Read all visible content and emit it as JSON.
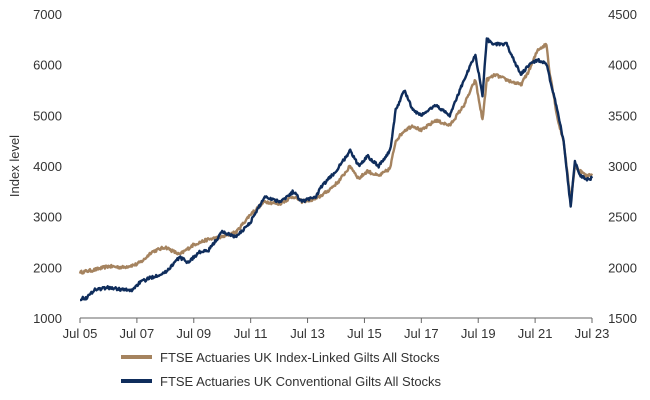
{
  "chart_data": {
    "type": "line",
    "title": "",
    "xlabel": "",
    "ylabel": "Index level",
    "y2label": "",
    "x_ticks": [
      "Jul 05",
      "Jul 07",
      "Jul 09",
      "Jul 11",
      "Jul 13",
      "Jul 15",
      "Jul 17",
      "Jul 19",
      "Jul 21",
      "Jul 23"
    ],
    "xlim": [
      2005.5,
      2023.5
    ],
    "ylim": [
      1000,
      7000
    ],
    "y_ticks": [
      "1000",
      "2000",
      "3000",
      "4000",
      "5000",
      "6000",
      "7000"
    ],
    "y2lim": [
      1500,
      4500
    ],
    "y2_ticks": [
      "1500",
      "2000",
      "2500",
      "3000",
      "3500",
      "4000",
      "4500"
    ],
    "grid": false,
    "legend": "bottom",
    "series": [
      {
        "name": "FTSE Actuaries UK Index-Linked Gilts All Stocks",
        "axis": "left",
        "color": "#a5835f",
        "points": [
          [
            2005.5,
            1900
          ],
          [
            2006.0,
            1950
          ],
          [
            2006.5,
            2020
          ],
          [
            2007.0,
            2000
          ],
          [
            2007.5,
            2060
          ],
          [
            2007.75,
            2150
          ],
          [
            2008.0,
            2300
          ],
          [
            2008.5,
            2400
          ],
          [
            2009.0,
            2250
          ],
          [
            2009.5,
            2450
          ],
          [
            2010.0,
            2550
          ],
          [
            2010.5,
            2600
          ],
          [
            2011.0,
            2700
          ],
          [
            2011.5,
            3050
          ],
          [
            2011.8,
            3200
          ],
          [
            2012.0,
            3300
          ],
          [
            2012.5,
            3250
          ],
          [
            2013.0,
            3400
          ],
          [
            2013.3,
            3300
          ],
          [
            2013.8,
            3350
          ],
          [
            2014.2,
            3500
          ],
          [
            2014.6,
            3700
          ],
          [
            2015.0,
            4000
          ],
          [
            2015.3,
            3750
          ],
          [
            2015.6,
            3900
          ],
          [
            2016.0,
            3800
          ],
          [
            2016.4,
            3950
          ],
          [
            2016.6,
            4500
          ],
          [
            2016.9,
            4700
          ],
          [
            2017.2,
            4800
          ],
          [
            2017.5,
            4700
          ],
          [
            2018.0,
            4900
          ],
          [
            2018.5,
            4800
          ],
          [
            2019.0,
            5200
          ],
          [
            2019.4,
            5700
          ],
          [
            2019.65,
            4900
          ],
          [
            2019.8,
            5700
          ],
          [
            2020.1,
            5800
          ],
          [
            2020.5,
            5700
          ],
          [
            2021.0,
            5600
          ],
          [
            2021.3,
            5900
          ],
          [
            2021.6,
            6300
          ],
          [
            2021.9,
            6400
          ],
          [
            2022.0,
            5900
          ],
          [
            2022.3,
            4900
          ],
          [
            2022.5,
            4500
          ],
          [
            2022.75,
            3300
          ],
          [
            2022.9,
            4000
          ],
          [
            2023.1,
            3900
          ],
          [
            2023.3,
            3800
          ],
          [
            2023.5,
            3850
          ]
        ]
      },
      {
        "name": "FTSE Actuaries UK Conventional Gilts All Stocks",
        "axis": "right",
        "color": "#0f2d5c",
        "points": [
          [
            2005.5,
            1690
          ],
          [
            2005.75,
            1700
          ],
          [
            2006.0,
            1780
          ],
          [
            2006.5,
            1800
          ],
          [
            2007.0,
            1780
          ],
          [
            2007.3,
            1770
          ],
          [
            2007.6,
            1850
          ],
          [
            2008.0,
            1900
          ],
          [
            2008.5,
            1950
          ],
          [
            2009.0,
            2100
          ],
          [
            2009.3,
            2050
          ],
          [
            2009.7,
            2150
          ],
          [
            2010.0,
            2160
          ],
          [
            2010.5,
            2350
          ],
          [
            2011.0,
            2300
          ],
          [
            2011.5,
            2450
          ],
          [
            2011.8,
            2600
          ],
          [
            2012.0,
            2700
          ],
          [
            2012.5,
            2650
          ],
          [
            2012.8,
            2700
          ],
          [
            2013.0,
            2750
          ],
          [
            2013.3,
            2650
          ],
          [
            2013.8,
            2700
          ],
          [
            2014.0,
            2800
          ],
          [
            2014.5,
            2950
          ],
          [
            2015.0,
            3150
          ],
          [
            2015.3,
            3000
          ],
          [
            2015.6,
            3100
          ],
          [
            2016.0,
            3000
          ],
          [
            2016.4,
            3150
          ],
          [
            2016.6,
            3550
          ],
          [
            2016.9,
            3750
          ],
          [
            2017.2,
            3550
          ],
          [
            2017.5,
            3500
          ],
          [
            2018.0,
            3600
          ],
          [
            2018.5,
            3500
          ],
          [
            2019.0,
            3850
          ],
          [
            2019.4,
            4100
          ],
          [
            2019.65,
            3700
          ],
          [
            2019.8,
            4250
          ],
          [
            2020.1,
            4200
          ],
          [
            2020.5,
            4200
          ],
          [
            2021.0,
            3900
          ],
          [
            2021.3,
            4000
          ],
          [
            2021.6,
            4050
          ],
          [
            2021.9,
            4000
          ],
          [
            2022.2,
            3650
          ],
          [
            2022.5,
            3250
          ],
          [
            2022.75,
            2600
          ],
          [
            2022.9,
            3050
          ],
          [
            2023.1,
            2900
          ],
          [
            2023.3,
            2870
          ],
          [
            2023.5,
            2880
          ]
        ]
      }
    ]
  }
}
